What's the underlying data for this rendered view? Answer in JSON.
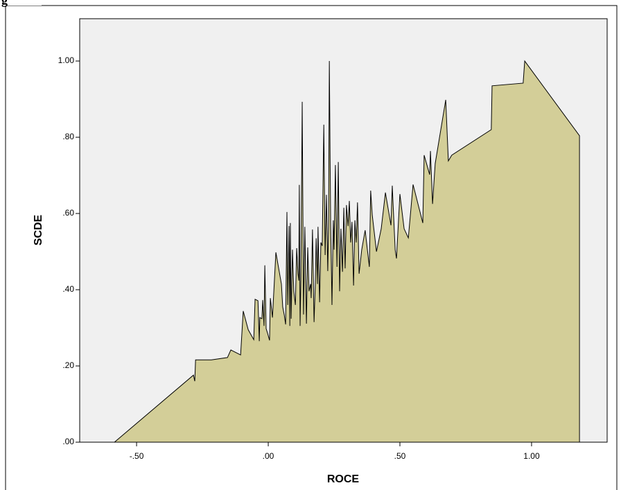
{
  "caption": "g",
  "chart_data": {
    "type": "area",
    "xlabel": "ROCE",
    "ylabel": "SCDE",
    "color": "#d3ce98",
    "line_color": "#000000",
    "background": "#f0f0f0",
    "x": [
      -0.584,
      -0.284,
      -0.279,
      -0.276,
      -0.216,
      -0.155,
      -0.142,
      -0.111,
      -0.105,
      -0.095,
      -0.076,
      -0.055,
      -0.05,
      -0.039,
      -0.034,
      -0.032,
      -0.024,
      -0.021,
      -0.016,
      -0.013,
      -0.008,
      -0.003,
      0.005,
      0.008,
      0.016,
      0.029,
      0.05,
      0.055,
      0.061,
      0.066,
      0.071,
      0.074,
      0.079,
      0.082,
      0.084,
      0.087,
      0.092,
      0.097,
      0.103,
      0.108,
      0.113,
      0.116,
      0.118,
      0.121,
      0.124,
      0.129,
      0.134,
      0.139,
      0.145,
      0.15,
      0.155,
      0.161,
      0.163,
      0.168,
      0.174,
      0.179,
      0.182,
      0.187,
      0.189,
      0.195,
      0.2,
      0.205,
      0.211,
      0.216,
      0.221,
      0.226,
      0.229,
      0.232,
      0.237,
      0.242,
      0.247,
      0.25,
      0.255,
      0.261,
      0.266,
      0.271,
      0.276,
      0.282,
      0.287,
      0.292,
      0.297,
      0.303,
      0.308,
      0.313,
      0.318,
      0.324,
      0.329,
      0.334,
      0.339,
      0.345,
      0.355,
      0.368,
      0.384,
      0.389,
      0.395,
      0.411,
      0.429,
      0.445,
      0.466,
      0.471,
      0.482,
      0.487,
      0.5,
      0.516,
      0.532,
      0.55,
      0.587,
      0.592,
      0.613,
      0.616,
      0.624,
      0.634,
      0.674,
      0.684,
      0.697,
      0.847,
      0.85,
      0.968,
      0.974,
      1.182
    ],
    "values": [
      0,
      0.176,
      0.16,
      0.216,
      0.216,
      0.222,
      0.242,
      0.231,
      0.229,
      0.344,
      0.295,
      0.269,
      0.375,
      0.371,
      0.265,
      0.327,
      0.324,
      0.373,
      0.305,
      0.464,
      0.298,
      0.287,
      0.267,
      0.378,
      0.327,
      0.498,
      0.415,
      0.355,
      0.333,
      0.309,
      0.604,
      0.36,
      0.567,
      0.305,
      0.575,
      0.324,
      0.505,
      0.396,
      0.36,
      0.509,
      0.442,
      0.424,
      0.675,
      0.305,
      0.433,
      0.893,
      0.335,
      0.565,
      0.311,
      0.511,
      0.396,
      0.415,
      0.378,
      0.558,
      0.315,
      0.422,
      0.535,
      0.415,
      0.565,
      0.367,
      0.524,
      0.515,
      0.833,
      0.491,
      0.649,
      0.449,
      0.565,
      1.0,
      0.58,
      0.36,
      0.582,
      0.505,
      0.727,
      0.46,
      0.735,
      0.396,
      0.56,
      0.447,
      0.615,
      0.456,
      0.622,
      0.567,
      0.633,
      0.524,
      0.578,
      0.411,
      0.582,
      0.524,
      0.629,
      0.442,
      0.505,
      0.556,
      0.46,
      0.66,
      0.596,
      0.5,
      0.56,
      0.655,
      0.569,
      0.673,
      0.505,
      0.482,
      0.651,
      0.56,
      0.536,
      0.676,
      0.575,
      0.753,
      0.702,
      0.764,
      0.625,
      0.731,
      0.898,
      0.738,
      0.753,
      0.82,
      0.935,
      0.942,
      1.0,
      0.804
    ],
    "xlim": [
      -0.716,
      1.287
    ],
    "ylim": [
      0,
      1.111
    ],
    "xticks": [
      {
        "value": -0.5,
        "label": "-.50"
      },
      {
        "value": 0,
        "label": ".00"
      },
      {
        "value": 0.5,
        "label": ".50"
      },
      {
        "value": 1,
        "label": "1.00"
      }
    ],
    "yticks": [
      {
        "value": 0,
        "label": ".00"
      },
      {
        "value": 0.2,
        "label": ".20"
      },
      {
        "value": 0.4,
        "label": ".40"
      },
      {
        "value": 0.6,
        "label": ".60"
      },
      {
        "value": 0.8,
        "label": ".80"
      },
      {
        "value": 1,
        "label": "1.00"
      }
    ],
    "grid": false
  }
}
